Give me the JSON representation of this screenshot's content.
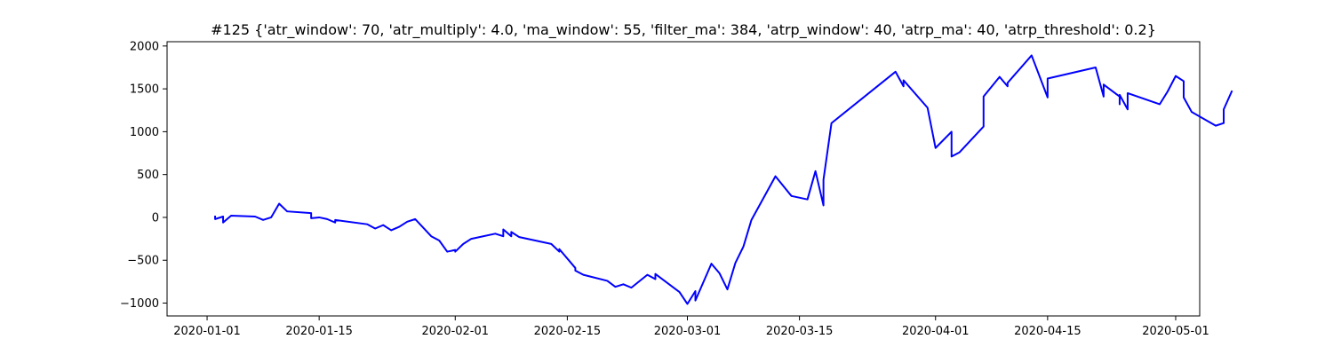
{
  "chart_data": {
    "type": "line",
    "title": "#125 {'atr_window': 70, 'atr_multiply': 4.0, 'ma_window': 55, 'filter_ma': 384, 'atrp_window': 40, 'atrp_ma': 40, 'atrp_threshold': 0.2}",
    "xlabel": "",
    "ylabel": "",
    "grid": false,
    "legend": "none",
    "xlim": [
      "2019-12-27",
      "2020-05-04"
    ],
    "ylim": [
      -1150,
      2050
    ],
    "x_ticks": [
      "2020-01-01",
      "2020-01-15",
      "2020-02-01",
      "2020-02-15",
      "2020-03-01",
      "2020-03-15",
      "2020-04-01",
      "2020-04-15",
      "2020-05-01"
    ],
    "y_ticks": [
      -1000,
      -500,
      0,
      500,
      1000,
      1500,
      2000
    ],
    "series": [
      {
        "color": "#0000ff",
        "points": [
          [
            "2020-01-02",
            10
          ],
          [
            "2020-01-02",
            -20
          ],
          [
            "2020-01-03",
            10
          ],
          [
            "2020-01-03",
            -40
          ],
          [
            "2020-01-03",
            -60
          ],
          [
            "2020-01-04",
            20
          ],
          [
            "2020-01-07",
            10
          ],
          [
            "2020-01-08",
            -30
          ],
          [
            "2020-01-09",
            0
          ],
          [
            "2020-01-10",
            160
          ],
          [
            "2020-01-11",
            70
          ],
          [
            "2020-01-14",
            50
          ],
          [
            "2020-01-14",
            -10
          ],
          [
            "2020-01-15",
            0
          ],
          [
            "2020-01-16",
            -20
          ],
          [
            "2020-01-17",
            -60
          ],
          [
            "2020-01-17",
            -30
          ],
          [
            "2020-01-21",
            -80
          ],
          [
            "2020-01-22",
            -130
          ],
          [
            "2020-01-23",
            -90
          ],
          [
            "2020-01-24",
            -150
          ],
          [
            "2020-01-25",
            -110
          ],
          [
            "2020-01-26",
            -50
          ],
          [
            "2020-01-27",
            -20
          ],
          [
            "2020-01-29",
            -220
          ],
          [
            "2020-01-30",
            -270
          ],
          [
            "2020-01-31",
            -400
          ],
          [
            "2020-02-01",
            -380
          ],
          [
            "2020-02-01",
            -400
          ],
          [
            "2020-02-02",
            -310
          ],
          [
            "2020-02-03",
            -250
          ],
          [
            "2020-02-06",
            -190
          ],
          [
            "2020-02-07",
            -220
          ],
          [
            "2020-02-07",
            -140
          ],
          [
            "2020-02-08",
            -220
          ],
          [
            "2020-02-08",
            -170
          ],
          [
            "2020-02-09",
            -230
          ],
          [
            "2020-02-13",
            -310
          ],
          [
            "2020-02-14",
            -400
          ],
          [
            "2020-02-14",
            -370
          ],
          [
            "2020-02-16",
            -590
          ],
          [
            "2020-02-16",
            -620
          ],
          [
            "2020-02-17",
            -670
          ],
          [
            "2020-02-20",
            -740
          ],
          [
            "2020-02-21",
            -810
          ],
          [
            "2020-02-22",
            -780
          ],
          [
            "2020-02-23",
            -820
          ],
          [
            "2020-02-25",
            -670
          ],
          [
            "2020-02-26",
            -720
          ],
          [
            "2020-02-26",
            -660
          ],
          [
            "2020-02-29",
            -870
          ],
          [
            "2020-03-01",
            -1010
          ],
          [
            "2020-03-02",
            -860
          ],
          [
            "2020-03-02",
            -970
          ],
          [
            "2020-03-04",
            -540
          ],
          [
            "2020-03-05",
            -650
          ],
          [
            "2020-03-06",
            -840
          ],
          [
            "2020-03-07",
            -530
          ],
          [
            "2020-03-08",
            -340
          ],
          [
            "2020-03-09",
            -30
          ],
          [
            "2020-03-12",
            480
          ],
          [
            "2020-03-14",
            250
          ],
          [
            "2020-03-16",
            210
          ],
          [
            "2020-03-17",
            540
          ],
          [
            "2020-03-18",
            140
          ],
          [
            "2020-03-18",
            440
          ],
          [
            "2020-03-19",
            1100
          ],
          [
            "2020-03-27",
            1700
          ],
          [
            "2020-03-28",
            1530
          ],
          [
            "2020-03-28",
            1600
          ],
          [
            "2020-03-31",
            1280
          ],
          [
            "2020-04-01",
            810
          ],
          [
            "2020-04-03",
            1000
          ],
          [
            "2020-04-03",
            710
          ],
          [
            "2020-04-04",
            760
          ],
          [
            "2020-04-07",
            1060
          ],
          [
            "2020-04-07",
            1410
          ],
          [
            "2020-04-09",
            1640
          ],
          [
            "2020-04-10",
            1530
          ],
          [
            "2020-04-10",
            1570
          ],
          [
            "2020-04-13",
            1890
          ],
          [
            "2020-04-15",
            1400
          ],
          [
            "2020-04-15",
            1620
          ],
          [
            "2020-04-21",
            1750
          ],
          [
            "2020-04-22",
            1410
          ],
          [
            "2020-04-22",
            1550
          ],
          [
            "2020-04-23",
            1480
          ],
          [
            "2020-04-24",
            1410
          ],
          [
            "2020-04-24",
            1320
          ],
          [
            "2020-04-24",
            1430
          ],
          [
            "2020-04-25",
            1260
          ],
          [
            "2020-04-25",
            1450
          ],
          [
            "2020-04-29",
            1320
          ],
          [
            "2020-04-30",
            1470
          ],
          [
            "2020-05-01",
            1650
          ],
          [
            "2020-05-02",
            1590
          ],
          [
            "2020-05-02",
            1400
          ],
          [
            "2020-05-03",
            1230
          ],
          [
            "2020-05-06",
            1070
          ],
          [
            "2020-05-07",
            1100
          ],
          [
            "2020-05-07",
            1260
          ],
          [
            "2020-05-08",
            1470
          ]
        ]
      }
    ]
  }
}
